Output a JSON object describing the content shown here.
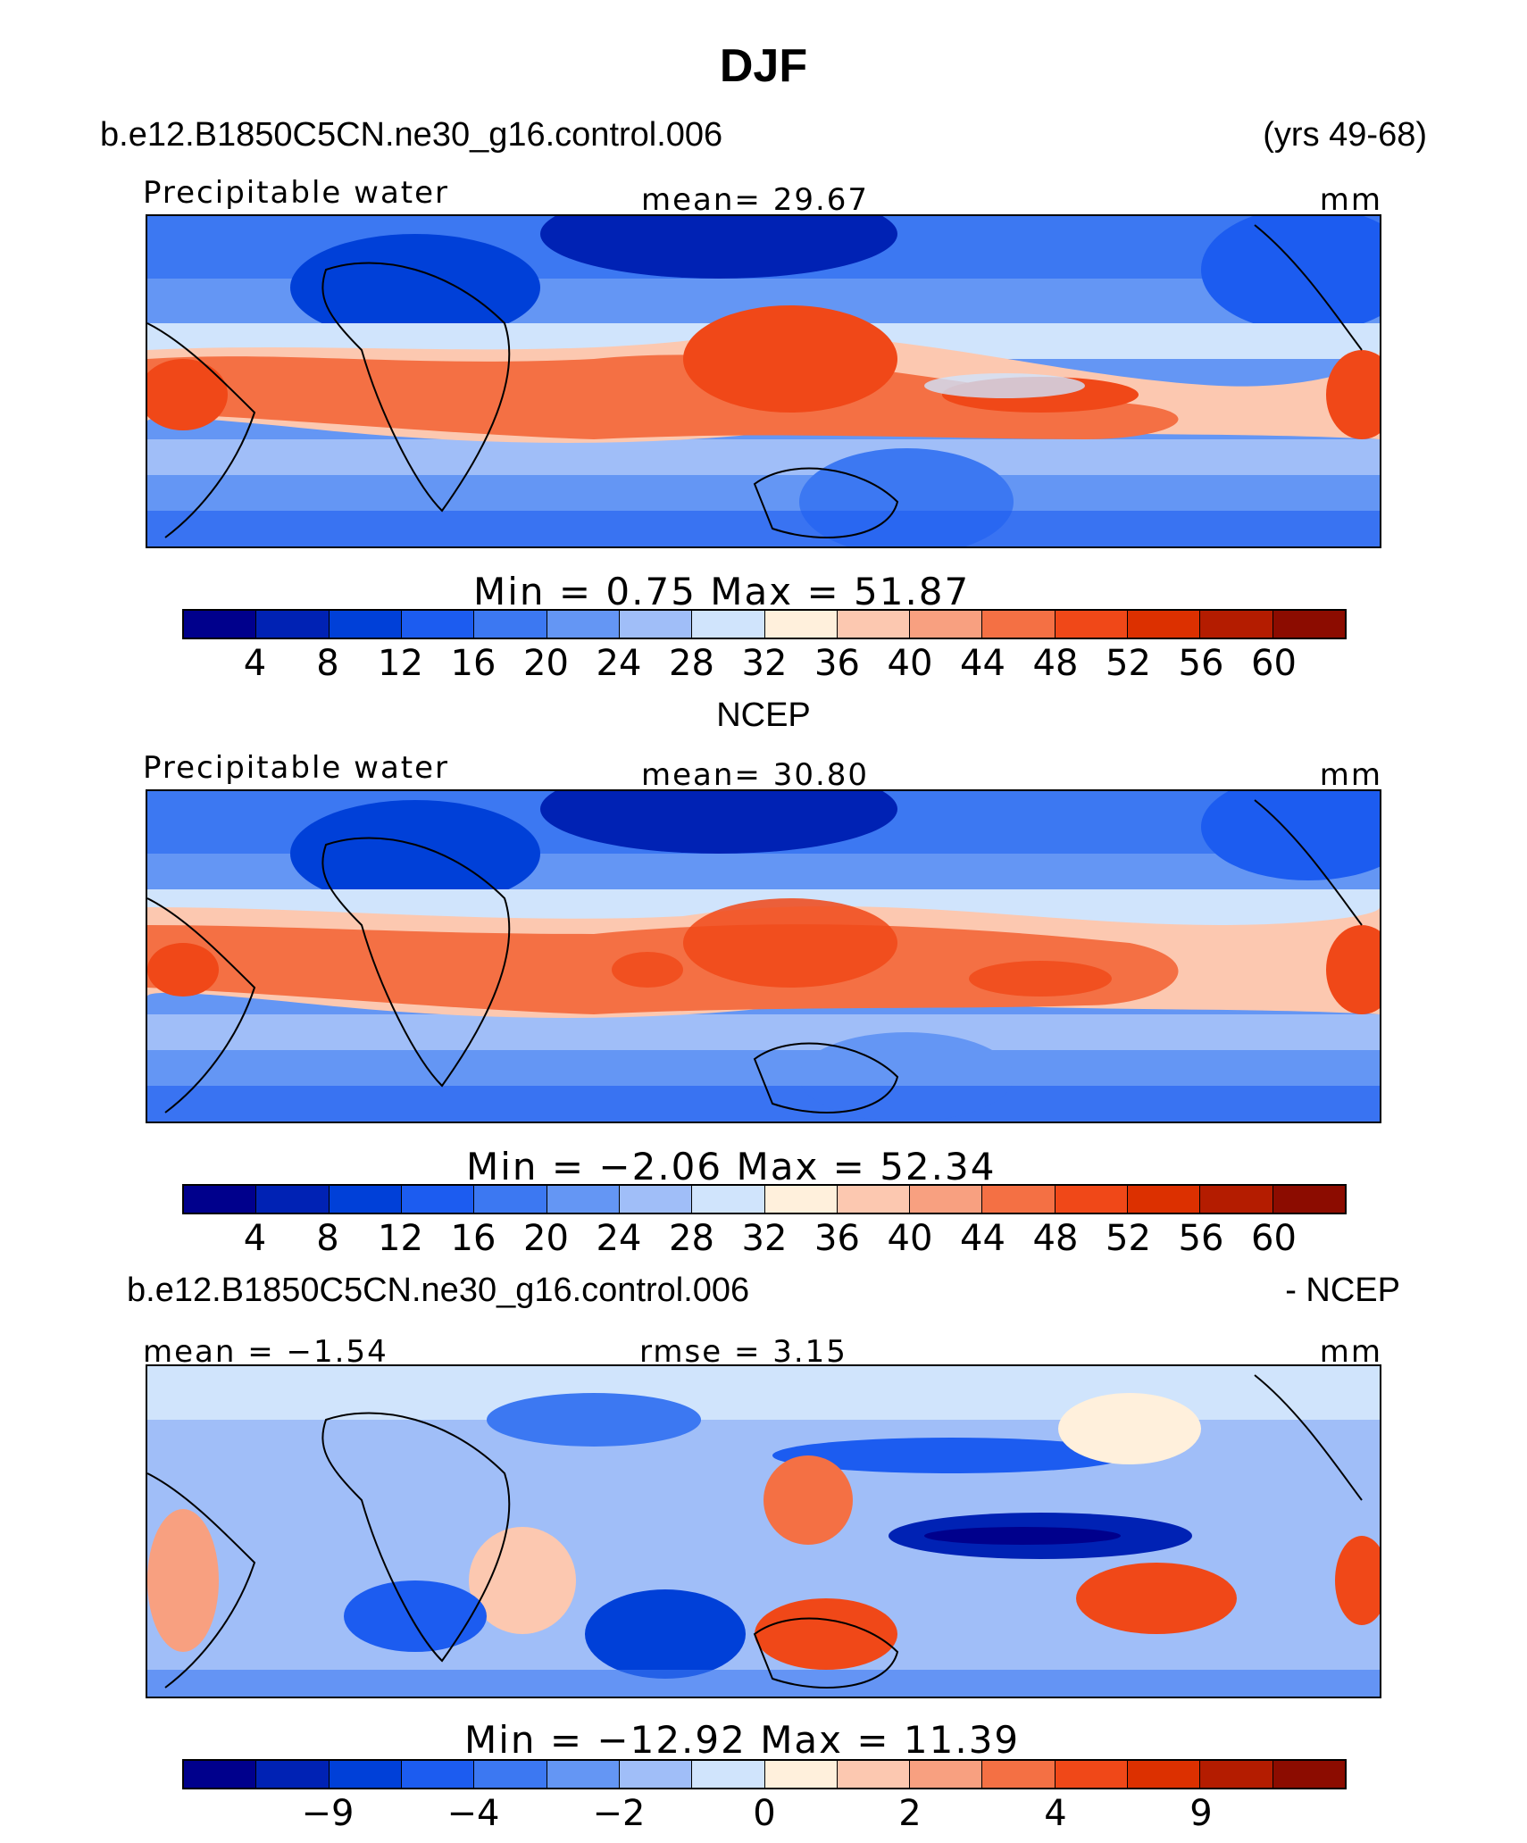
{
  "title": "DJF",
  "case_name": "b.e12.B1850C5CN.ne30_g16.control.006",
  "years": "(yrs 49-68)",
  "colors": [
    "#00008c",
    "#0022b4",
    "#0040d8",
    "#1c5cf0",
    "#3c78f2",
    "#6496f4",
    "#a0bef8",
    "#d0e4fc",
    "#fff0dc",
    "#fcc8b0",
    "#f8a080",
    "#f47044",
    "#f04818",
    "#dc3000",
    "#b41c00",
    "#8c0c00"
  ],
  "panels": [
    {
      "id": "model",
      "header_left": "",
      "variable": "Precipitable water",
      "stat_center": "mean=   29.67",
      "units": "mm",
      "minmax": "Min  =    0.75  Max  =   51.87",
      "ticks": [
        "4",
        "8",
        "12",
        "16",
        "20",
        "24",
        "28",
        "32",
        "36",
        "40",
        "44",
        "48",
        "52",
        "56",
        "60"
      ]
    },
    {
      "id": "obs",
      "header_center": "NCEP",
      "variable": "Precipitable water",
      "stat_center": "mean=   30.80",
      "units": "mm",
      "minmax": "Min  =  −2.06  Max  =   52.34",
      "ticks": [
        "4",
        "8",
        "12",
        "16",
        "20",
        "24",
        "28",
        "32",
        "36",
        "40",
        "44",
        "48",
        "52",
        "56",
        "60"
      ]
    },
    {
      "id": "diff",
      "header_left": "b.e12.B1850C5CN.ne30_g16.control.006",
      "header_right": "- NCEP",
      "stat_left": "mean  =   −1.54",
      "stat_center": "rmse  =     3.15",
      "units": "mm",
      "minmax": "Min  = −12.92  Max  =   11.39",
      "ticks": [
        "−9",
        "−4",
        "−2",
        "0",
        "2",
        "4",
        "9"
      ]
    }
  ]
}
